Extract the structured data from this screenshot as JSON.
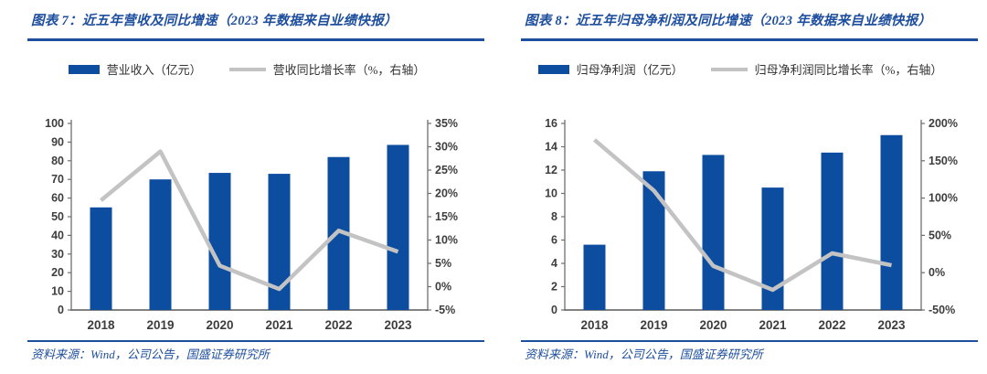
{
  "colors": {
    "accent": "#1e4e9e",
    "bar": "#0d4da0",
    "line": "#c3c3c3",
    "axis_line": "#6f6f6f",
    "axis_text": "#3d3d3d",
    "legend_text": "#333333"
  },
  "charts": [
    {
      "title": "图表 7：近五年营收及同比增速（2023 年数据来自业绩快报）",
      "legend": [
        {
          "kind": "bar",
          "label": "营业收入（亿元）"
        },
        {
          "kind": "line",
          "label": "营收同比增长率（%，右轴）"
        }
      ],
      "source": "资料来源：Wind，公司公告，国盛证券研究所",
      "chart_data": {
        "type": "bar+line",
        "categories": [
          "2018",
          "2019",
          "2020",
          "2021",
          "2022",
          "2023"
        ],
        "series": [
          {
            "name": "营业收入（亿元）",
            "type": "bar",
            "axis": "left",
            "values": [
              55,
              70,
              73.5,
              73,
              82,
              88.5
            ]
          },
          {
            "name": "营收同比增长率（%，右轴）",
            "type": "line",
            "axis": "right",
            "values": [
              18.5,
              29,
              4.5,
              -0.5,
              12,
              7.5
            ]
          }
        ],
        "left_axis": {
          "min": 0,
          "max": 100,
          "step": 10,
          "suffix": ""
        },
        "right_axis": {
          "min": -5,
          "max": 35,
          "step": 5,
          "suffix": "%"
        },
        "legend_position": "top",
        "grid": false
      }
    },
    {
      "title": "图表 8：近五年归母净利润及同比增速（2023 年数据来自业绩快报）",
      "legend": [
        {
          "kind": "bar",
          "label": "归母净利润（亿元）"
        },
        {
          "kind": "line",
          "label": "归母净利润同比增长率（%，右轴）"
        }
      ],
      "source": "资料来源：Wind，公司公告，国盛证券研究所",
      "chart_data": {
        "type": "bar+line",
        "categories": [
          "2018",
          "2019",
          "2020",
          "2021",
          "2022",
          "2023"
        ],
        "series": [
          {
            "name": "归母净利润（亿元）",
            "type": "bar",
            "axis": "left",
            "values": [
              5.6,
              11.9,
              13.3,
              10.5,
              13.5,
              15.0
            ]
          },
          {
            "name": "归母净利润同比增长率（%，右轴）",
            "type": "line",
            "axis": "right",
            "values": [
              178,
              110,
              9,
              -23,
              26,
              10
            ]
          }
        ],
        "left_axis": {
          "min": 0,
          "max": 16,
          "step": 2,
          "suffix": ""
        },
        "right_axis": {
          "min": -50,
          "max": 200,
          "step": 50,
          "suffix": "%"
        },
        "legend_position": "top",
        "grid": false
      }
    }
  ]
}
